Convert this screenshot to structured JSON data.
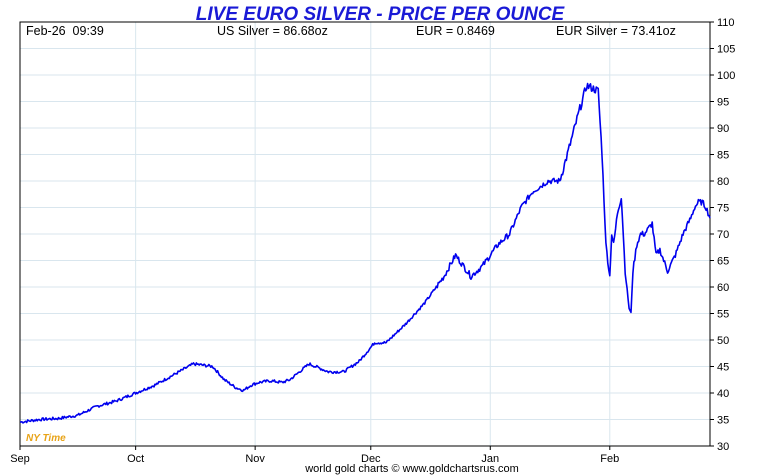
{
  "chart_data": {
    "type": "line",
    "title": "LIVE EURO SILVER - PRICE PER OUNCE",
    "header": {
      "timestamp": "Feb-26  09:39",
      "us_silver": "US Silver = 86.68oz",
      "eur_rate": "EUR = 0.8469",
      "eur_silver": "EUR Silver = 73.41oz"
    },
    "x_labels": [
      "Sep",
      "Oct",
      "Nov",
      "Dec",
      "Jan",
      "Feb"
    ],
    "y_ticks": [
      30,
      35,
      40,
      45,
      50,
      55,
      60,
      65,
      70,
      75,
      80,
      85,
      90,
      95,
      100,
      105,
      110
    ],
    "ylim": [
      30,
      110
    ],
    "xlim": [
      0,
      179
    ],
    "grid": true,
    "timezone_label": "NY Time",
    "footer": "world gold charts © www.goldchartsrus.com",
    "line_color": "#0000ee",
    "series": [
      {
        "x": [
          0,
          5,
          10,
          15,
          20,
          25,
          30,
          35,
          40,
          45,
          50,
          53,
          56,
          58,
          60,
          62,
          65,
          68,
          70,
          75,
          80,
          84,
          88,
          92,
          95,
          100,
          105,
          110,
          113,
          117,
          120,
          124,
          127,
          130,
          133,
          137,
          140,
          142,
          145,
          147,
          150,
          151,
          152,
          153,
          153.5,
          154,
          155,
          156,
          157,
          158,
          158.5,
          159,
          160,
          161,
          162,
          163,
          164,
          165,
          166,
          167,
          168,
          170,
          172,
          174,
          175,
          176,
          177,
          178,
          179
        ],
        "y": [
          34.5,
          35,
          35.2,
          35.8,
          37.5,
          38.5,
          40,
          41.5,
          43.5,
          45.5,
          45,
          42.5,
          41,
          40.5,
          41.5,
          42,
          42.3,
          42,
          42.5,
          45.5,
          44,
          44,
          46,
          49.5,
          49.5,
          53,
          57,
          62,
          66,
          62,
          64,
          68,
          70,
          75,
          78,
          80,
          80,
          85,
          93,
          98,
          97,
          85,
          68,
          62,
          70,
          68,
          74,
          77,
          63,
          56,
          55,
          63,
          68,
          70,
          70,
          71,
          72,
          66,
          67,
          65,
          63,
          66,
          70,
          73,
          75,
          76,
          76,
          75,
          73
        ]
      }
    ]
  }
}
